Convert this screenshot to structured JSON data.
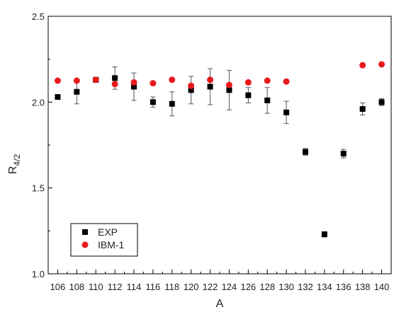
{
  "chart_data": {
    "type": "scatter",
    "title": "",
    "xlabel": "A",
    "ylabel": {
      "main": "R",
      "sub": "4/2"
    },
    "xlim": [
      105,
      141
    ],
    "ylim": [
      1.0,
      2.5
    ],
    "xticks": [
      106,
      108,
      110,
      112,
      114,
      116,
      118,
      120,
      122,
      124,
      126,
      128,
      130,
      132,
      134,
      136,
      138,
      140
    ],
    "yticks": [
      "1.0",
      "1.5",
      "2.0",
      "2.5"
    ],
    "grid": false,
    "legend_position": "bottom-left",
    "series": [
      {
        "name": "EXP",
        "marker": "square",
        "color": "#000000",
        "points": [
          {
            "x": 106,
            "y": 2.03,
            "err": null
          },
          {
            "x": 108,
            "y": 2.06,
            "err": 0.07
          },
          {
            "x": 110,
            "y": 2.13,
            "err": null
          },
          {
            "x": 112,
            "y": 2.14,
            "err": 0.065
          },
          {
            "x": 114,
            "y": 2.09,
            "err": 0.08
          },
          {
            "x": 116,
            "y": 2.0,
            "err": 0.03
          },
          {
            "x": 118,
            "y": 1.99,
            "err": 0.07
          },
          {
            "x": 120,
            "y": 2.07,
            "err": 0.08
          },
          {
            "x": 122,
            "y": 2.09,
            "err": 0.105
          },
          {
            "x": 124,
            "y": 2.07,
            "err": 0.115
          },
          {
            "x": 126,
            "y": 2.04,
            "err": 0.045
          },
          {
            "x": 128,
            "y": 2.01,
            "err": 0.075
          },
          {
            "x": 130,
            "y": 1.94,
            "err": 0.065
          },
          {
            "x": 132,
            "y": 1.71,
            "err": 0.02
          },
          {
            "x": 134,
            "y": 1.23,
            "err": 0.015
          },
          {
            "x": 136,
            "y": 1.7,
            "err": 0.025
          },
          {
            "x": 138,
            "y": 1.96,
            "err": 0.035
          },
          {
            "x": 140,
            "y": 2.0,
            "err": 0.02
          }
        ]
      },
      {
        "name": "IBM-1",
        "marker": "circle",
        "color": "#e8191c",
        "points": [
          {
            "x": 106,
            "y": 2.125
          },
          {
            "x": 108,
            "y": 2.125
          },
          {
            "x": 110,
            "y": 2.13
          },
          {
            "x": 112,
            "y": 2.105
          },
          {
            "x": 114,
            "y": 2.115
          },
          {
            "x": 116,
            "y": 2.11
          },
          {
            "x": 118,
            "y": 2.13
          },
          {
            "x": 120,
            "y": 2.095
          },
          {
            "x": 122,
            "y": 2.13
          },
          {
            "x": 124,
            "y": 2.1
          },
          {
            "x": 126,
            "y": 2.115
          },
          {
            "x": 128,
            "y": 2.125
          },
          {
            "x": 130,
            "y": 2.12
          },
          {
            "x": 138,
            "y": 2.215
          },
          {
            "x": 140,
            "y": 2.22
          }
        ]
      }
    ]
  }
}
